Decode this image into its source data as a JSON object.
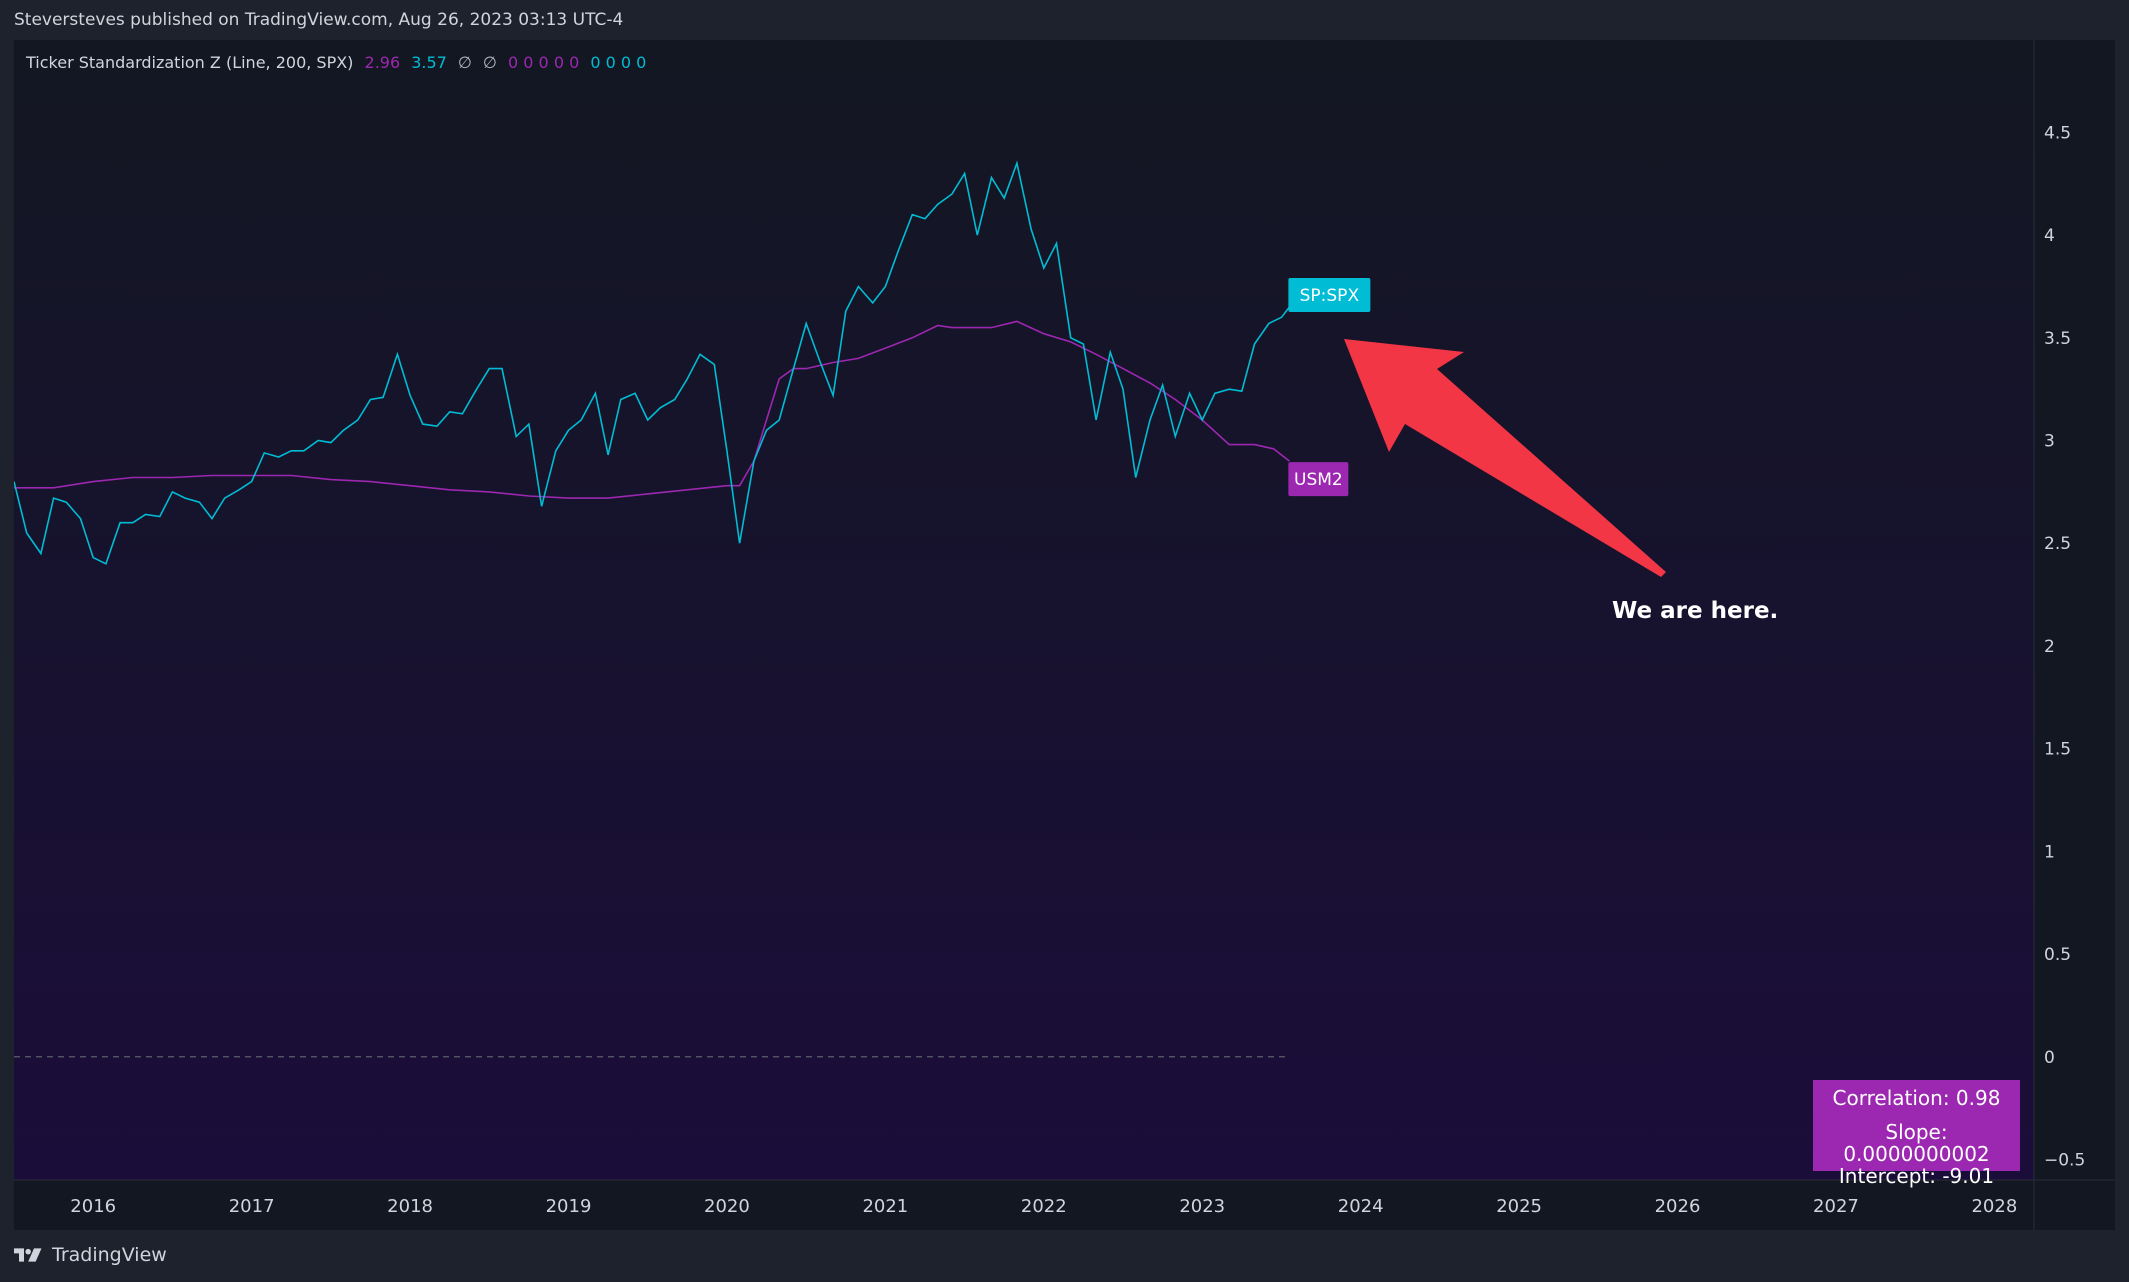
{
  "header": {
    "published_text": "Steversteves published on TradingView.com, Aug 26, 2023 03:13 UTC-4"
  },
  "legend": {
    "indicator": "Ticker Standardization Z (Line, 200, SPX)",
    "value_1": "2.96",
    "value_2": "3.57",
    "null_1": "∅",
    "null_2": "∅",
    "zeros_magenta": "0 0 0 0 0",
    "zeros_cyan": "0 0 0 0"
  },
  "colors": {
    "background_top": "#131722",
    "background_bottom": "#1b0d3a",
    "spx": "#00bcd4",
    "usm2": "#9c27b0",
    "arrow": "#f23645"
  },
  "stats_box": {
    "correlation": "Correlation: 0.98",
    "slope": "Slope: 0.0000000002",
    "intercept": "Intercept: -9.01"
  },
  "annotation": {
    "text": "We are here.",
    "arrow_icon": "arrow-up-left-icon"
  },
  "footer": {
    "brand": "TradingView",
    "logo_icon": "tradingview-logo-icon"
  },
  "chart_data": {
    "type": "line",
    "x_axis": {
      "labels": [
        "2016",
        "2017",
        "2018",
        "2019",
        "2020",
        "2021",
        "2022",
        "2023",
        "2024",
        "2025",
        "2026",
        "2027",
        "2028"
      ],
      "range": [
        2015.5,
        2028.25
      ]
    },
    "y_axis": {
      "ticks": [
        -0.5,
        0,
        0.5,
        1,
        1.5,
        2,
        2.5,
        3,
        3.5,
        4,
        4.5
      ],
      "tick_labels": [
        "−0.5",
        "0",
        "0.5",
        "1",
        "1.5",
        "2",
        "2.5",
        "3",
        "3.5",
        "4",
        "4.5"
      ],
      "range": [
        -0.6,
        4.95
      ],
      "position": "right"
    },
    "zero_line": {
      "value": 0,
      "style": "dashed",
      "x_end": 2023.53
    },
    "series": [
      {
        "name": "SP:SPX",
        "label_text": "SP:SPX",
        "color": "#00bcd4",
        "x": [
          2015.5,
          2015.58,
          2015.67,
          2015.75,
          2015.83,
          2015.92,
          2016.0,
          2016.08,
          2016.17,
          2016.25,
          2016.33,
          2016.42,
          2016.5,
          2016.58,
          2016.67,
          2016.75,
          2016.83,
          2016.92,
          2017.0,
          2017.08,
          2017.17,
          2017.25,
          2017.33,
          2017.42,
          2017.5,
          2017.58,
          2017.67,
          2017.75,
          2017.83,
          2017.92,
          2018.0,
          2018.08,
          2018.17,
          2018.25,
          2018.33,
          2018.42,
          2018.5,
          2018.58,
          2018.67,
          2018.75,
          2018.83,
          2018.92,
          2019.0,
          2019.08,
          2019.17,
          2019.25,
          2019.33,
          2019.42,
          2019.5,
          2019.58,
          2019.67,
          2019.75,
          2019.83,
          2019.92,
          2020.0,
          2020.08,
          2020.17,
          2020.25,
          2020.33,
          2020.42,
          2020.5,
          2020.58,
          2020.67,
          2020.75,
          2020.83,
          2020.92,
          2021.0,
          2021.08,
          2021.17,
          2021.25,
          2021.33,
          2021.42,
          2021.5,
          2021.58,
          2021.67,
          2021.75,
          2021.83,
          2021.92,
          2022.0,
          2022.08,
          2022.17,
          2022.25,
          2022.33,
          2022.42,
          2022.5,
          2022.58,
          2022.67,
          2022.75,
          2022.83,
          2022.92,
          2023.0,
          2023.08,
          2023.17,
          2023.25,
          2023.33,
          2023.42,
          2023.5,
          2023.55
        ],
        "values": [
          2.8,
          2.55,
          2.45,
          2.72,
          2.7,
          2.62,
          2.43,
          2.4,
          2.6,
          2.6,
          2.64,
          2.63,
          2.75,
          2.72,
          2.7,
          2.62,
          2.72,
          2.76,
          2.8,
          2.94,
          2.92,
          2.95,
          2.95,
          3.0,
          2.99,
          3.05,
          3.1,
          3.2,
          3.21,
          3.42,
          3.22,
          3.08,
          3.07,
          3.14,
          3.13,
          3.25,
          3.35,
          3.35,
          3.02,
          3.08,
          2.68,
          2.95,
          3.05,
          3.1,
          3.23,
          2.93,
          3.2,
          3.23,
          3.1,
          3.16,
          3.2,
          3.3,
          3.42,
          3.37,
          2.95,
          2.5,
          2.9,
          3.05,
          3.1,
          3.35,
          3.57,
          3.4,
          3.22,
          3.63,
          3.75,
          3.67,
          3.75,
          3.92,
          4.1,
          4.08,
          4.15,
          4.2,
          4.3,
          4.0,
          4.28,
          4.18,
          4.35,
          4.03,
          3.84,
          3.96,
          3.5,
          3.47,
          3.1,
          3.43,
          3.25,
          2.82,
          3.1,
          3.27,
          3.02,
          3.23,
          3.1,
          3.23,
          3.25,
          3.24,
          3.47,
          3.57,
          3.6,
          3.65
        ]
      },
      {
        "name": "USM2",
        "label_text": "USM2",
        "color": "#9c27b0",
        "x": [
          2015.5,
          2015.75,
          2016.0,
          2016.25,
          2016.5,
          2016.75,
          2017.0,
          2017.25,
          2017.5,
          2017.75,
          2018.0,
          2018.25,
          2018.5,
          2018.75,
          2019.0,
          2019.25,
          2019.5,
          2019.75,
          2020.0,
          2020.08,
          2020.17,
          2020.25,
          2020.33,
          2020.42,
          2020.5,
          2020.67,
          2020.83,
          2021.0,
          2021.17,
          2021.33,
          2021.42,
          2021.5,
          2021.67,
          2021.83,
          2022.0,
          2022.17,
          2022.33,
          2022.5,
          2022.67,
          2022.83,
          2023.0,
          2023.17,
          2023.33,
          2023.45,
          2023.55
        ],
        "values": [
          2.77,
          2.77,
          2.8,
          2.82,
          2.82,
          2.83,
          2.83,
          2.83,
          2.81,
          2.8,
          2.78,
          2.76,
          2.75,
          2.73,
          2.72,
          2.72,
          2.74,
          2.76,
          2.78,
          2.78,
          2.9,
          3.1,
          3.3,
          3.35,
          3.35,
          3.38,
          3.4,
          3.45,
          3.5,
          3.56,
          3.55,
          3.55,
          3.55,
          3.58,
          3.52,
          3.48,
          3.42,
          3.35,
          3.28,
          3.2,
          3.1,
          2.98,
          2.98,
          2.96,
          2.9
        ]
      }
    ]
  }
}
